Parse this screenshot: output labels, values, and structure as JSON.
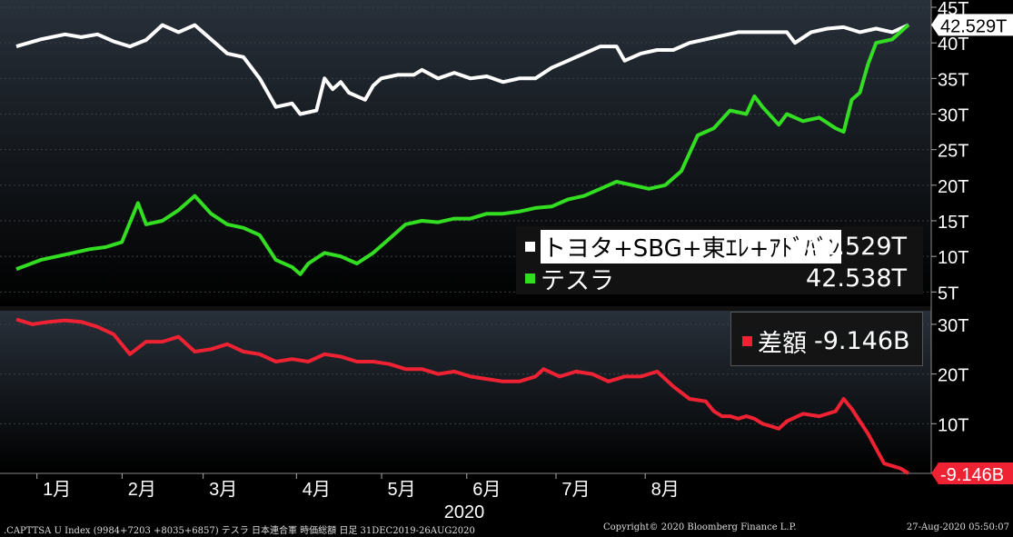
{
  "chart_data": [
    {
      "type": "line",
      "ylim": [
        3,
        45
      ],
      "yticks": [
        5,
        10,
        15,
        20,
        25,
        30,
        35,
        40,
        45
      ],
      "ytick_suffix": "T",
      "series": [
        {
          "name": "トヨタ+SBG+東ｴﾚ+ｱﾄﾞﾊﾞﾝ",
          "color": "#ffffff",
          "last_label": "42.529T",
          "legend_value": "42.529T",
          "points": [
            [
              0,
              39.5
            ],
            [
              3,
              40.5
            ],
            [
              6,
              41.2
            ],
            [
              8,
              40.8
            ],
            [
              10,
              41.2
            ],
            [
              12,
              40.2
            ],
            [
              14,
              39.5
            ],
            [
              16,
              40.4
            ],
            [
              18,
              42.5
            ],
            [
              20,
              41.5
            ],
            [
              22,
              42.5
            ],
            [
              24,
              40.5
            ],
            [
              26,
              38.5
            ],
            [
              28,
              38.0
            ],
            [
              30,
              35.0
            ],
            [
              32,
              31.0
            ],
            [
              34,
              31.5
            ],
            [
              35,
              30.0
            ],
            [
              37,
              30.5
            ],
            [
              38,
              35.0
            ],
            [
              39,
              33.5
            ],
            [
              40,
              34.5
            ],
            [
              41,
              33.0
            ],
            [
              42,
              32.5
            ],
            [
              43,
              32.0
            ],
            [
              44,
              34.0
            ],
            [
              45,
              35.0
            ],
            [
              47,
              35.5
            ],
            [
              49,
              35.5
            ],
            [
              50,
              36.2
            ],
            [
              52,
              35.0
            ],
            [
              54,
              35.8
            ],
            [
              56,
              35.0
            ],
            [
              58,
              35.3
            ],
            [
              60,
              34.5
            ],
            [
              62,
              35.0
            ],
            [
              64,
              35.0
            ],
            [
              66,
              36.5
            ],
            [
              68,
              37.5
            ],
            [
              70,
              38.5
            ],
            [
              72,
              39.5
            ],
            [
              74,
              39.5
            ],
            [
              75,
              37.5
            ],
            [
              77,
              38.5
            ],
            [
              79,
              39.0
            ],
            [
              81,
              39.0
            ],
            [
              83,
              40.0
            ],
            [
              85,
              40.5
            ],
            [
              87,
              41.0
            ],
            [
              89,
              41.5
            ],
            [
              91,
              41.5
            ],
            [
              93,
              41.5
            ],
            [
              95,
              41.5
            ],
            [
              96,
              40.0
            ],
            [
              98,
              41.5
            ],
            [
              100,
              42.0
            ],
            [
              102,
              42.2
            ],
            [
              104,
              41.5
            ],
            [
              106,
              42.0
            ],
            [
              108,
              41.5
            ],
            [
              110,
              42.529
            ]
          ]
        },
        {
          "name": "テスラ",
          "color": "#33dd22",
          "legend_value": "42.538T",
          "points": [
            [
              0,
              8.2
            ],
            [
              3,
              9.5
            ],
            [
              5,
              10.0
            ],
            [
              7,
              10.5
            ],
            [
              9,
              11.0
            ],
            [
              11,
              11.3
            ],
            [
              13,
              12.0
            ],
            [
              15,
              17.5
            ],
            [
              16,
              14.5
            ],
            [
              18,
              15.0
            ],
            [
              20,
              16.5
            ],
            [
              22,
              18.5
            ],
            [
              24,
              16.0
            ],
            [
              26,
              14.5
            ],
            [
              28,
              14.0
            ],
            [
              30,
              13.0
            ],
            [
              32,
              9.5
            ],
            [
              34,
              8.5
            ],
            [
              35,
              7.5
            ],
            [
              36,
              9.0
            ],
            [
              38,
              10.5
            ],
            [
              40,
              10.0
            ],
            [
              42,
              9.0
            ],
            [
              44,
              10.5
            ],
            [
              46,
              12.5
            ],
            [
              48,
              14.5
            ],
            [
              50,
              15.0
            ],
            [
              52,
              14.8
            ],
            [
              54,
              15.3
            ],
            [
              56,
              15.3
            ],
            [
              58,
              16.0
            ],
            [
              60,
              16.0
            ],
            [
              62,
              16.3
            ],
            [
              64,
              16.8
            ],
            [
              66,
              17.0
            ],
            [
              68,
              18.0
            ],
            [
              70,
              18.5
            ],
            [
              72,
              19.5
            ],
            [
              74,
              20.5
            ],
            [
              76,
              20.0
            ],
            [
              78,
              19.5
            ],
            [
              80,
              20.0
            ],
            [
              82,
              22.0
            ],
            [
              84,
              27.0
            ],
            [
              86,
              28.0
            ],
            [
              88,
              30.5
            ],
            [
              90,
              30.0
            ],
            [
              91,
              32.5
            ],
            [
              92,
              31.0
            ],
            [
              94,
              28.5
            ],
            [
              95,
              30.0
            ],
            [
              97,
              29.0
            ],
            [
              99,
              29.5
            ],
            [
              101,
              28.0
            ],
            [
              102,
              27.5
            ],
            [
              103,
              32.0
            ],
            [
              104,
              33.0
            ],
            [
              105,
              37.0
            ],
            [
              106,
              40.0
            ],
            [
              108,
              40.5
            ],
            [
              110,
              42.538
            ]
          ]
        }
      ]
    },
    {
      "type": "line",
      "ylim": [
        0,
        32
      ],
      "yticks": [
        10,
        20,
        30
      ],
      "ytick_suffix": "T",
      "series": [
        {
          "name": "差額",
          "color": "#ee2233",
          "last_label": "-9.146B",
          "legend_value": "-9.146B",
          "points": [
            [
              0,
              31.0
            ],
            [
              2,
              30.0
            ],
            [
              4,
              30.5
            ],
            [
              6,
              30.8
            ],
            [
              8,
              30.5
            ],
            [
              10,
              29.5
            ],
            [
              12,
              28.0
            ],
            [
              14,
              24.0
            ],
            [
              16,
              26.5
            ],
            [
              18,
              26.5
            ],
            [
              20,
              27.5
            ],
            [
              22,
              24.5
            ],
            [
              24,
              25.0
            ],
            [
              26,
              26.0
            ],
            [
              28,
              24.5
            ],
            [
              30,
              24.0
            ],
            [
              32,
              22.5
            ],
            [
              34,
              23.0
            ],
            [
              36,
              22.5
            ],
            [
              38,
              24.0
            ],
            [
              40,
              23.5
            ],
            [
              42,
              22.5
            ],
            [
              44,
              22.5
            ],
            [
              46,
              22.0
            ],
            [
              48,
              21.0
            ],
            [
              50,
              21.0
            ],
            [
              52,
              20.0
            ],
            [
              54,
              20.5
            ],
            [
              56,
              19.5
            ],
            [
              58,
              19.0
            ],
            [
              60,
              18.5
            ],
            [
              62,
              18.5
            ],
            [
              64,
              19.5
            ],
            [
              65,
              21.0
            ],
            [
              67,
              19.5
            ],
            [
              69,
              20.5
            ],
            [
              71,
              20.0
            ],
            [
              73,
              18.5
            ],
            [
              75,
              19.5
            ],
            [
              77,
              19.5
            ],
            [
              79,
              20.5
            ],
            [
              81,
              17.5
            ],
            [
              83,
              15.0
            ],
            [
              85,
              14.5
            ],
            [
              86,
              12.5
            ],
            [
              87,
              11.5
            ],
            [
              88,
              11.5
            ],
            [
              89,
              11.0
            ],
            [
              90,
              11.5
            ],
            [
              91,
              11.0
            ],
            [
              92,
              10.0
            ],
            [
              93,
              9.5
            ],
            [
              94,
              9.0
            ],
            [
              95,
              10.5
            ],
            [
              97,
              12.0
            ],
            [
              99,
              11.5
            ],
            [
              101,
              12.5
            ],
            [
              102,
              15.0
            ],
            [
              103,
              13.0
            ],
            [
              104,
              10.5
            ],
            [
              105,
              8.0
            ],
            [
              106,
              5.0
            ],
            [
              107,
              2.0
            ],
            [
              108,
              1.5
            ],
            [
              109,
              1.0
            ],
            [
              110,
              -0.009
            ]
          ]
        }
      ]
    }
  ],
  "xaxis": {
    "months": [
      "1月",
      "2月",
      "3月",
      "4月",
      "5月",
      "6月",
      "7月",
      "8月"
    ],
    "month_positions": [
      5,
      15.5,
      25.5,
      37,
      47.5,
      58,
      69,
      80
    ],
    "year": "2020",
    "xlim": [
      0,
      110
    ]
  },
  "footer": {
    "left": ".CAPTTSA U Index (9984+7203 +8035+6857) テスラ  日本連合軍  時価総額  日足 31DEC2019-26AUG2020",
    "center": "Copyright© 2020 Bloomberg Finance L.P.",
    "right": "27-Aug-2020 05:50:07"
  }
}
